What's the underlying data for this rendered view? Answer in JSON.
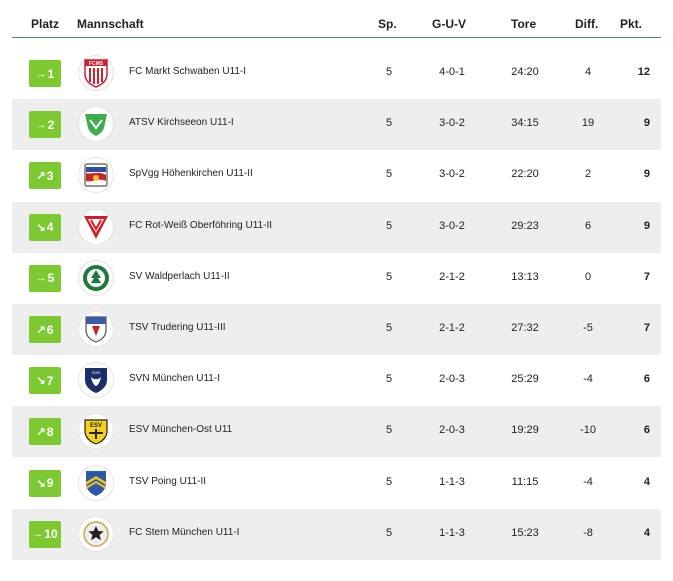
{
  "headers": {
    "platz": "Platz",
    "mannschaft": "Mannschaft",
    "sp": "Sp.",
    "guv": "G-U-V",
    "tore": "Tore",
    "diff": "Diff.",
    "pkt": "Pkt."
  },
  "colors": {
    "badge": "#7dc932",
    "alt_row": "#eeeeee",
    "header_line": "#4a7fa0"
  },
  "rows": [
    {
      "trend": "right",
      "trend_icon": "arrow-right-icon",
      "arrow": "→",
      "rank": "1",
      "team": "FC Markt Schwaben U11-I",
      "sp": "5",
      "guv": "4-0-1",
      "tore": "24:20",
      "diff": "4",
      "pkt": "12",
      "logo": "fcms-crest-icon"
    },
    {
      "trend": "right",
      "trend_icon": "arrow-right-icon",
      "arrow": "→",
      "rank": "2",
      "team": "ATSV Kirchseeon U11-I",
      "sp": "5",
      "guv": "3-0-2",
      "tore": "34:15",
      "diff": "19",
      "pkt": "9",
      "logo": "atsv-crest-icon"
    },
    {
      "trend": "up",
      "trend_icon": "arrow-up-right-icon",
      "arrow": "↗",
      "rank": "3",
      "team": "SpVgg Höhenkirchen U11-II",
      "sp": "5",
      "guv": "3-0-2",
      "tore": "22:20",
      "diff": "2",
      "pkt": "9",
      "logo": "spvgg-crest-icon"
    },
    {
      "trend": "down",
      "trend_icon": "arrow-down-right-icon",
      "arrow": "↘",
      "rank": "4",
      "team": "FC Rot-Weiß Oberföhring U11-II",
      "sp": "5",
      "guv": "3-0-2",
      "tore": "29:23",
      "diff": "6",
      "pkt": "9",
      "logo": "fcrw-crest-icon"
    },
    {
      "trend": "right",
      "trend_icon": "arrow-right-icon",
      "arrow": "→",
      "rank": "5",
      "team": "SV Waldperlach U11-II",
      "sp": "5",
      "guv": "2-1-2",
      "tore": "13:13",
      "diff": "0",
      "pkt": "7",
      "logo": "svw-crest-icon"
    },
    {
      "trend": "up",
      "trend_icon": "arrow-up-right-icon",
      "arrow": "↗",
      "rank": "6",
      "team": "TSV Trudering U11-III",
      "sp": "5",
      "guv": "2-1-2",
      "tore": "27:32",
      "diff": "-5",
      "pkt": "7",
      "logo": "tsv-trudering-crest-icon"
    },
    {
      "trend": "down",
      "trend_icon": "arrow-down-right-icon",
      "arrow": "↘",
      "rank": "7",
      "team": "SVN München U11-I",
      "sp": "5",
      "guv": "2-0-3",
      "tore": "25:29",
      "diff": "-4",
      "pkt": "6",
      "logo": "svn-crest-icon"
    },
    {
      "trend": "up",
      "trend_icon": "arrow-up-right-icon",
      "arrow": "↗",
      "rank": "8",
      "team": "ESV München-Ost U11",
      "sp": "5",
      "guv": "2-0-3",
      "tore": "19:29",
      "diff": "-10",
      "pkt": "6",
      "logo": "esv-crest-icon"
    },
    {
      "trend": "down",
      "trend_icon": "arrow-down-right-icon",
      "arrow": "↘",
      "rank": "9",
      "team": "TSV Poing U11-II",
      "sp": "5",
      "guv": "1-1-3",
      "tore": "11:15",
      "diff": "-4",
      "pkt": "4",
      "logo": "tsv-poing-crest-icon"
    },
    {
      "trend": "right",
      "trend_icon": "arrow-right-icon",
      "arrow": "→",
      "rank": "10",
      "team": "FC Stern München U11-I",
      "sp": "5",
      "guv": "1-1-3",
      "tore": "15:23",
      "diff": "-8",
      "pkt": "4",
      "logo": "fc-stern-crest-icon"
    }
  ]
}
